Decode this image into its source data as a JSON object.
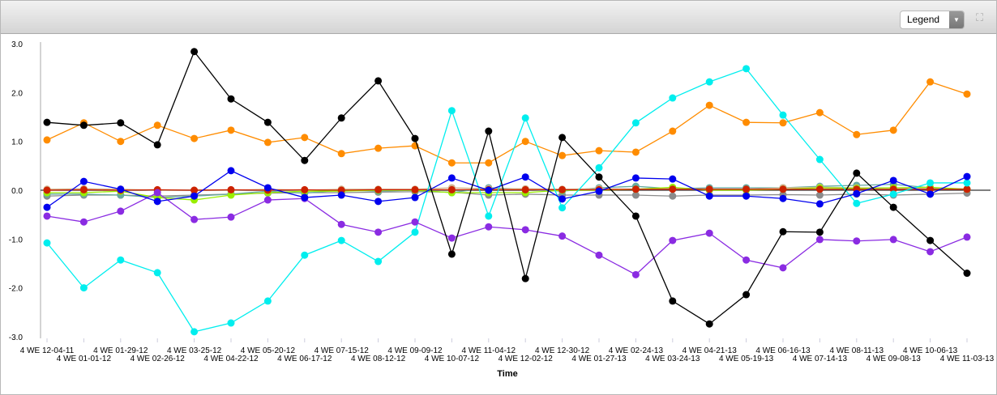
{
  "header": {
    "legend_label": "Legend"
  },
  "chart_data": {
    "type": "line",
    "title": "",
    "xlabel": "Time",
    "ylabel": "",
    "ylim": [
      -3,
      3
    ],
    "yticks": [
      "3.0",
      "2.0",
      "1.0",
      "0.0",
      "-1.0",
      "-2.0",
      "-3.0"
    ],
    "categories": [
      "4 WE 12-04-11",
      "4 WE 01-01-12",
      "4 WE 01-29-12",
      "4 WE 02-26-12",
      "4 WE 03-25-12",
      "4 WE 04-22-12",
      "4 WE 05-20-12",
      "4 WE 06-17-12",
      "4 WE 07-15-12",
      "4 WE 08-12-12",
      "4 WE 09-09-12",
      "4 WE 10-07-12",
      "4 WE 11-04-12",
      "4 WE 12-02-12",
      "4 WE 12-30-12",
      "4 WE 01-27-13",
      "4 WE 02-24-13",
      "4 WE 03-24-13",
      "4 WE 04-21-13",
      "4 WE 05-19-13",
      "4 WE 06-16-13",
      "4 WE 07-14-13",
      "4 WE 08-11-13",
      "4 WE 09-08-13",
      "4 WE 10-06-13",
      "4 WE 11-03-13"
    ],
    "series": [
      {
        "color": "#8b8b8b",
        "values": [
          -0.12,
          -0.1,
          -0.1,
          -0.12,
          -0.1,
          -0.08,
          -0.06,
          -0.05,
          -0.05,
          -0.04,
          -0.03,
          -0.04,
          -0.1,
          -0.08,
          -0.1,
          -0.1,
          -0.1,
          -0.12,
          -0.1,
          -0.1,
          -0.09,
          -0.1,
          -0.08,
          -0.1,
          -0.08,
          -0.06
        ]
      },
      {
        "color": "#66aaa0",
        "values": [
          -0.08,
          -0.08,
          -0.1,
          -0.15,
          -0.12,
          -0.08,
          -0.02,
          -0.06,
          0.0,
          -0.02,
          0.0,
          -0.05,
          0.05,
          0.02,
          -0.02,
          0.05,
          0.08,
          0.03,
          0.05,
          0.05,
          0.05,
          0.08,
          0.1,
          0.12,
          0.05,
          0.02
        ]
      },
      {
        "color": "#d2b48c",
        "values": [
          0.02,
          0.03,
          0.02,
          0.0,
          0.0,
          0.0,
          0.02,
          0.0,
          0.02,
          0.02,
          0.02,
          0.05,
          0.03,
          0.03,
          0.02,
          0.03,
          0.02,
          0.04,
          0.02,
          0.02,
          0.05,
          0.06,
          0.05,
          0.05,
          0.03,
          0.02
        ]
      },
      {
        "color": "#99ee00",
        "values": [
          -0.05,
          -0.05,
          -0.02,
          -0.15,
          -0.2,
          -0.1,
          -0.05,
          -0.02,
          -0.02,
          0.0,
          0.0,
          -0.05,
          -0.05,
          -0.05,
          0.0,
          0.0,
          0.02,
          0.06,
          0.0,
          0.0,
          0.02,
          0.05,
          0.04,
          0.05,
          0.06,
          0.02
        ]
      },
      {
        "color": "#cc2200",
        "values": [
          0.0,
          0.01,
          0.0,
          0.01,
          0.0,
          0.01,
          0.0,
          0.01,
          0.0,
          0.01,
          0.01,
          0.01,
          0.01,
          0.01,
          0.01,
          0.01,
          0.02,
          0.02,
          0.02,
          0.02,
          0.02,
          0.02,
          0.02,
          0.02,
          0.02,
          0.02
        ]
      },
      {
        "color": "#ff8c00",
        "values": [
          1.03,
          1.38,
          1.0,
          1.33,
          1.06,
          1.23,
          0.98,
          1.08,
          0.75,
          0.86,
          0.91,
          0.56,
          0.56,
          1.0,
          0.71,
          0.81,
          0.78,
          1.21,
          1.74,
          1.39,
          1.38,
          1.59,
          1.14,
          1.23,
          2.22,
          1.97
        ]
      },
      {
        "color": "#00eeee",
        "values": [
          -1.08,
          -2.0,
          -1.43,
          -1.69,
          -2.9,
          -2.72,
          -2.27,
          -1.33,
          -1.03,
          -1.46,
          -0.86,
          1.63,
          -0.53,
          1.48,
          -0.36,
          0.46,
          1.38,
          1.89,
          2.22,
          2.49,
          1.54,
          0.63,
          -0.27,
          -0.08,
          0.15,
          0.15
        ]
      },
      {
        "color": "#8a2be2",
        "values": [
          -0.53,
          -0.65,
          -0.43,
          -0.05,
          -0.6,
          -0.55,
          -0.2,
          -0.17,
          -0.7,
          -0.86,
          -0.65,
          -0.98,
          -0.75,
          -0.81,
          -0.94,
          -1.33,
          -1.73,
          -1.03,
          -0.88,
          -1.43,
          -1.59,
          -1.01,
          -1.04,
          -1.01,
          -1.26,
          -0.96
        ]
      },
      {
        "color": "#0000ee",
        "values": [
          -0.35,
          0.18,
          0.02,
          -0.23,
          -0.12,
          0.4,
          0.05,
          -0.15,
          -0.1,
          -0.23,
          -0.15,
          0.25,
          0.0,
          0.27,
          -0.18,
          -0.02,
          0.25,
          0.23,
          -0.12,
          -0.12,
          -0.17,
          -0.28,
          -0.07,
          0.2,
          -0.08,
          0.28
        ]
      },
      {
        "color": "#000000",
        "values": [
          1.39,
          1.33,
          1.38,
          0.93,
          2.84,
          1.87,
          1.39,
          0.61,
          1.48,
          2.24,
          1.06,
          -1.31,
          1.21,
          -1.81,
          1.08,
          0.27,
          -0.53,
          -2.27,
          -2.74,
          -2.14,
          -0.85,
          -0.86,
          0.35,
          -0.35,
          -1.03,
          -1.7
        ]
      }
    ]
  }
}
